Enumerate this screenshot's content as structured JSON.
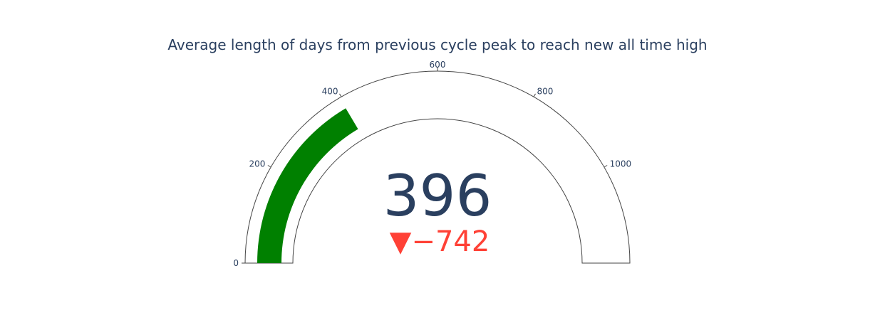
{
  "chart_data": {
    "type": "gauge",
    "title": "Average length of days from previous cycle peak to reach new all time high",
    "value": 396,
    "value_label": "396",
    "delta": {
      "symbol": "▼",
      "value": -742,
      "label": "−742",
      "color": "#FF4136"
    },
    "axis": {
      "range": [
        0,
        1200
      ],
      "tickvals": [
        0,
        200,
        400,
        600,
        800,
        1000
      ],
      "ticktext": [
        "0",
        "200",
        "400",
        "600",
        "800",
        "1000"
      ]
    },
    "bar_color": "#008000",
    "border_color": "#444444"
  }
}
